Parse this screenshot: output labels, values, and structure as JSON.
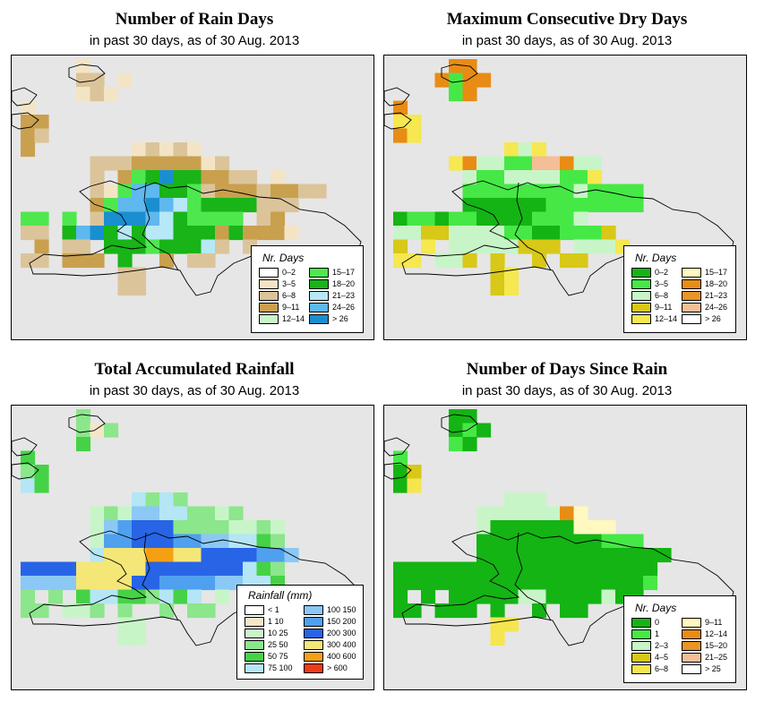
{
  "panels": [
    {
      "key": "rain_days",
      "title": "Number of Rain Days",
      "subtitle": "in past 30 days, as of  30 Aug. 2013",
      "legend": {
        "title": "Nr. Days",
        "classes": [
          {
            "label": "0–2",
            "color": "#ffffff"
          },
          {
            "label": "3–5",
            "color": "#f3e4c6"
          },
          {
            "label": "6–8",
            "color": "#dcc49a"
          },
          {
            "label": "9–11",
            "color": "#c9a04e"
          },
          {
            "label": "12–14",
            "color": "#c8f5c8"
          },
          {
            "label": "15–17",
            "color": "#4ee84e"
          },
          {
            "label": "18–20",
            "color": "#18b418"
          },
          {
            "label": "21–23",
            "color": "#b7e8f5"
          },
          {
            "label": "24–26",
            "color": "#5fb8ee"
          },
          {
            "label": "> 26",
            "color": "#1a8fd0"
          }
        ]
      }
    },
    {
      "key": "dry_days",
      "title": "Maximum Consecutive Dry Days",
      "subtitle": "in past 30 days, as of  30 Aug. 2013",
      "legend": {
        "title": "Nr. Days",
        "classes": [
          {
            "label": "0–2",
            "color": "#14b414"
          },
          {
            "label": "3–5",
            "color": "#46e846"
          },
          {
            "label": "6–8",
            "color": "#c8f5c8"
          },
          {
            "label": "9–11",
            "color": "#d8c818"
          },
          {
            "label": "12–14",
            "color": "#f5e850"
          },
          {
            "label": "15–17",
            "color": "#fff8c0"
          },
          {
            "label": "18–20",
            "color": "#e88c14"
          },
          {
            "label": "21–23",
            "color": "#e89628"
          },
          {
            "label": "24–26",
            "color": "#f5be96"
          },
          {
            "label": "> 26",
            "color": "#ffffff"
          }
        ]
      }
    },
    {
      "key": "rainfall",
      "title": "Total Accumulated Rainfall",
      "subtitle": "in past 30 days, as of  30 Aug. 2013",
      "legend": {
        "title": "Rainfall (mm)",
        "classes": [
          {
            "label": "< 1",
            "color": "#ffffff"
          },
          {
            "label": "1   10",
            "color": "#f5e6c8"
          },
          {
            "label": "10   25",
            "color": "#c8f5c8"
          },
          {
            "label": "25   50",
            "color": "#8ce68c"
          },
          {
            "label": "50   75",
            "color": "#46d246"
          },
          {
            "label": "75  100",
            "color": "#b4e6f5"
          },
          {
            "label": "100  150",
            "color": "#8cc8f5"
          },
          {
            "label": "150  200",
            "color": "#50a0f0"
          },
          {
            "label": "200  300",
            "color": "#2864e6"
          },
          {
            "label": "300  400",
            "color": "#f5e678"
          },
          {
            "label": "400  600",
            "color": "#f5a014"
          },
          {
            "label": "> 600",
            "color": "#f03c14"
          }
        ]
      }
    },
    {
      "key": "since_rain",
      "title": "Number of Days Since Rain",
      "subtitle": "in past 30 days, as of  30 Aug. 2013",
      "legend": {
        "title": "Nr. Days",
        "classes": [
          {
            "label": "0",
            "color": "#14b414"
          },
          {
            "label": "1",
            "color": "#46e846"
          },
          {
            "label": "2–3",
            "color": "#c8f5c8"
          },
          {
            "label": "4–5",
            "color": "#d8c818"
          },
          {
            "label": "6–8",
            "color": "#f5e650"
          },
          {
            "label": "9–11",
            "color": "#fff8c0"
          },
          {
            "label": "12–14",
            "color": "#e88c14"
          },
          {
            "label": "15–20",
            "color": "#e89628"
          },
          {
            "label": "21–25",
            "color": "#f5be96"
          },
          {
            "label": "> 25",
            "color": "#ffffff"
          }
        ]
      }
    }
  ]
}
